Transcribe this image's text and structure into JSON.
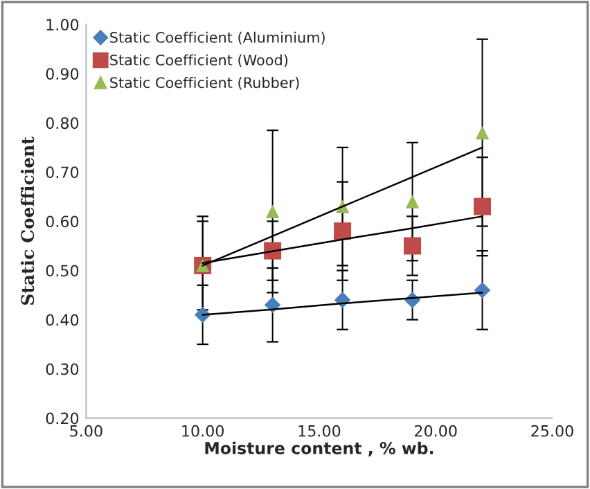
{
  "chart_data": {
    "type": "scatter",
    "xlabel": "Moisture content , % wb.",
    "ylabel": "Static Coefficient",
    "x": [
      10,
      13,
      16,
      19,
      22
    ],
    "series": [
      {
        "name": "Static Coefficient (Aluminium)",
        "color": "#4a7ebb",
        "marker": "diamond",
        "values": [
          0.41,
          0.43,
          0.44,
          0.44,
          0.46
        ],
        "errors": [
          0.06,
          0.075,
          0.06,
          0.04,
          0.08
        ]
      },
      {
        "name": "Static Coefficient (Wood)",
        "color": "#be4b48",
        "marker": "square",
        "values": [
          0.51,
          0.54,
          0.58,
          0.55,
          0.63
        ],
        "errors": [
          0.09,
          0.06,
          0.1,
          0.06,
          0.1
        ]
      },
      {
        "name": "Static Coefficient (Rubber)",
        "color": "#98b954",
        "marker": "triangle",
        "values": [
          0.51,
          0.62,
          0.63,
          0.64,
          0.78
        ],
        "errors": [
          0.1,
          0.165,
          0.12,
          0.12,
          0.19
        ]
      },
      {
        "type": "line",
        "color": "#000000",
        "values": [
          0.41,
          0.421,
          0.433,
          0.444,
          0.455
        ]
      },
      {
        "type": "line",
        "color": "#000000",
        "values": [
          0.515,
          0.539,
          0.563,
          0.586,
          0.61
        ]
      },
      {
        "type": "line",
        "color": "#000000",
        "values": [
          0.51,
          0.57,
          0.63,
          0.69,
          0.75
        ]
      }
    ],
    "xlim": [
      5,
      25
    ],
    "xticks": [
      {
        "value": 5,
        "label": "5.00"
      },
      {
        "value": 10,
        "label": "10.00"
      },
      {
        "value": 15,
        "label": "15.00"
      },
      {
        "value": 20,
        "label": "20.00"
      },
      {
        "value": 25,
        "label": "25.00"
      }
    ],
    "ylim": [
      0.2,
      1.0
    ],
    "yticks": [
      {
        "value": 0.2,
        "label": "0.20"
      },
      {
        "value": 0.3,
        "label": "0.30"
      },
      {
        "value": 0.4,
        "label": "0.40"
      },
      {
        "value": 0.5,
        "label": "0.50"
      },
      {
        "value": 0.6,
        "label": "0.60"
      },
      {
        "value": 0.7,
        "label": "0.70"
      },
      {
        "value": 0.8,
        "label": "0.80"
      },
      {
        "value": 0.9,
        "label": "0.90"
      },
      {
        "value": 1.0,
        "label": "1.00"
      }
    ],
    "legend": "top left",
    "grid": false
  }
}
